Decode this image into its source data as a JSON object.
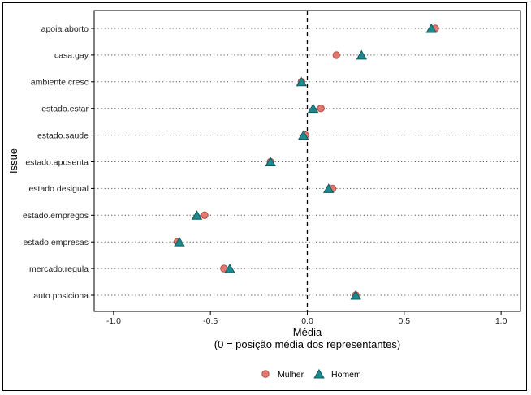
{
  "chart_data": {
    "type": "scatter",
    "title": "",
    "xlabel_line1": "Média",
    "xlabel_line2": "(0 = posição média dos representantes)",
    "ylabel": "Issue",
    "xlim": [
      -1.1,
      1.1
    ],
    "x_ticks": [
      -1.0,
      -0.5,
      0.0,
      0.5,
      1.0
    ],
    "x_tick_labels": [
      "-1.0",
      "-0.5",
      "0.0",
      "0.5",
      "1.0"
    ],
    "reference_line_x": 0,
    "categories": [
      "apoia.aborto",
      "casa.gay",
      "ambiente.cresc",
      "estado.estar",
      "estado.saude",
      "estado.aposenta",
      "estado.desigual",
      "estado.empregos",
      "estado.empresas",
      "mercado.regula",
      "auto.posiciona"
    ],
    "series": [
      {
        "name": "Mulher",
        "marker": "circle",
        "color": "#E07A70",
        "edge": "#B24F48",
        "values": [
          0.66,
          0.15,
          -0.03,
          0.07,
          -0.01,
          -0.19,
          0.13,
          -0.53,
          -0.67,
          -0.43,
          0.25
        ]
      },
      {
        "name": "Homem",
        "marker": "triangle",
        "color": "#1B8A8E",
        "edge": "#15595B",
        "values": [
          0.64,
          0.28,
          -0.03,
          0.03,
          -0.02,
          -0.19,
          0.11,
          -0.57,
          -0.66,
          -0.4,
          0.25
        ]
      }
    ],
    "legend": {
      "position": "bottom",
      "labels": [
        "Mulher",
        "Homem"
      ]
    }
  }
}
